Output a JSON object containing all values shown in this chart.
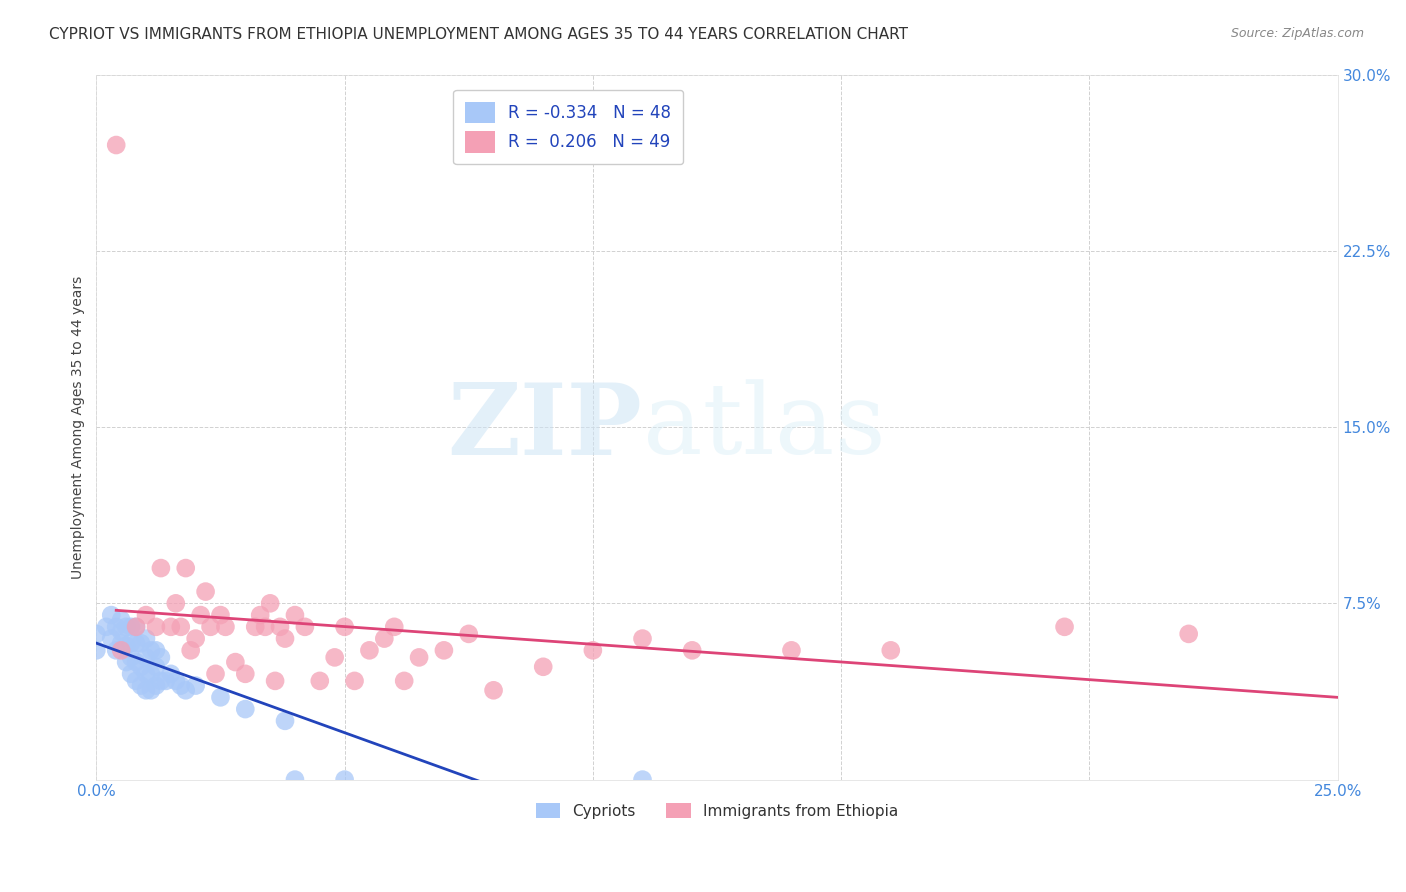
{
  "title": "CYPRIOT VS IMMIGRANTS FROM ETHIOPIA UNEMPLOYMENT AMONG AGES 35 TO 44 YEARS CORRELATION CHART",
  "source": "Source: ZipAtlas.com",
  "ylabel": "Unemployment Among Ages 35 to 44 years",
  "xlabel_cypriot": "Cypriots",
  "xlabel_ethiopia": "Immigrants from Ethiopia",
  "xlim": [
    0.0,
    0.25
  ],
  "ylim": [
    0.0,
    0.3
  ],
  "xticks": [
    0.0,
    0.05,
    0.1,
    0.15,
    0.2,
    0.25
  ],
  "yticks": [
    0.0,
    0.075,
    0.15,
    0.225,
    0.3
  ],
  "xticklabels": [
    "0.0%",
    "",
    "",
    "",
    "",
    "25.0%"
  ],
  "yticklabels": [
    "",
    "7.5%",
    "15.0%",
    "22.5%",
    "30.0%"
  ],
  "color_cypriot": "#a8c8f8",
  "color_ethiopia": "#f4a0b5",
  "line_color_cypriot": "#2244bb",
  "line_color_ethiopia": "#dd4477",
  "R_cypriot": -0.334,
  "N_cypriot": 48,
  "R_ethiopia": 0.206,
  "N_ethiopia": 49,
  "cypriot_x": [
    0.0,
    0.0,
    0.002,
    0.003,
    0.003,
    0.004,
    0.004,
    0.005,
    0.005,
    0.005,
    0.006,
    0.006,
    0.006,
    0.007,
    0.007,
    0.007,
    0.007,
    0.008,
    0.008,
    0.008,
    0.008,
    0.009,
    0.009,
    0.009,
    0.01,
    0.01,
    0.01,
    0.01,
    0.011,
    0.011,
    0.011,
    0.012,
    0.012,
    0.012,
    0.013,
    0.013,
    0.014,
    0.015,
    0.016,
    0.017,
    0.018,
    0.02,
    0.025,
    0.03,
    0.038,
    0.04,
    0.05,
    0.11
  ],
  "cypriot_y": [
    0.055,
    0.062,
    0.065,
    0.06,
    0.07,
    0.055,
    0.065,
    0.058,
    0.063,
    0.068,
    0.05,
    0.057,
    0.065,
    0.045,
    0.052,
    0.058,
    0.065,
    0.042,
    0.05,
    0.058,
    0.065,
    0.04,
    0.048,
    0.058,
    0.038,
    0.045,
    0.052,
    0.06,
    0.038,
    0.045,
    0.055,
    0.04,
    0.048,
    0.055,
    0.042,
    0.052,
    0.042,
    0.045,
    0.042,
    0.04,
    0.038,
    0.04,
    0.035,
    0.03,
    0.025,
    0.0,
    0.0,
    0.0
  ],
  "ethiopia_x": [
    0.004,
    0.005,
    0.008,
    0.01,
    0.012,
    0.013,
    0.015,
    0.016,
    0.017,
    0.018,
    0.019,
    0.02,
    0.021,
    0.022,
    0.023,
    0.024,
    0.025,
    0.026,
    0.028,
    0.03,
    0.032,
    0.033,
    0.034,
    0.035,
    0.036,
    0.037,
    0.038,
    0.04,
    0.042,
    0.045,
    0.048,
    0.05,
    0.052,
    0.055,
    0.058,
    0.06,
    0.062,
    0.065,
    0.07,
    0.075,
    0.08,
    0.09,
    0.1,
    0.11,
    0.12,
    0.14,
    0.16,
    0.195,
    0.22
  ],
  "ethiopia_y": [
    0.27,
    0.055,
    0.065,
    0.07,
    0.065,
    0.09,
    0.065,
    0.075,
    0.065,
    0.09,
    0.055,
    0.06,
    0.07,
    0.08,
    0.065,
    0.045,
    0.07,
    0.065,
    0.05,
    0.045,
    0.065,
    0.07,
    0.065,
    0.075,
    0.042,
    0.065,
    0.06,
    0.07,
    0.065,
    0.042,
    0.052,
    0.065,
    0.042,
    0.055,
    0.06,
    0.065,
    0.042,
    0.052,
    0.055,
    0.062,
    0.038,
    0.048,
    0.055,
    0.06,
    0.055,
    0.055,
    0.055,
    0.065,
    0.062
  ],
  "watermark_zip": "ZIP",
  "watermark_atlas": "atlas",
  "background_color": "#ffffff",
  "title_fontsize": 11,
  "axis_label_fontsize": 10,
  "tick_fontsize": 11,
  "legend_fontsize": 12
}
